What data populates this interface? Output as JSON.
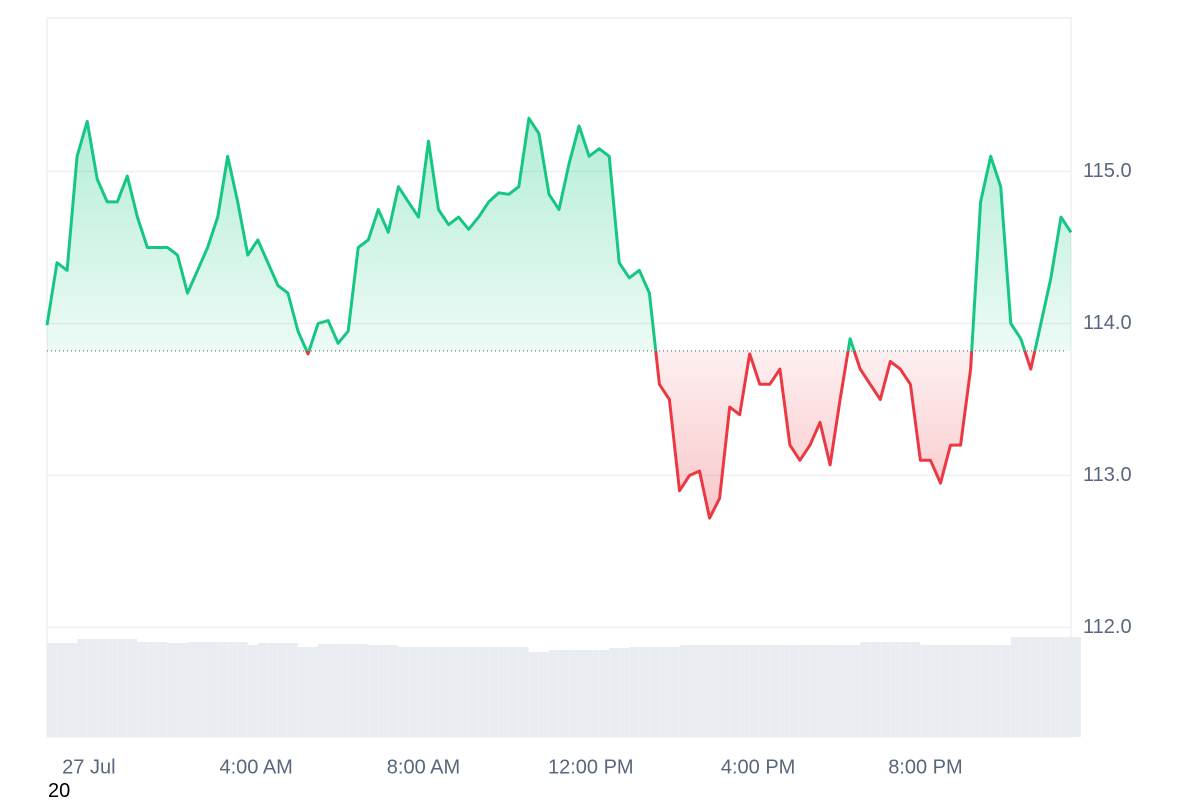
{
  "chart_data": {
    "type": "line",
    "x": [
      -1,
      -0.76,
      -0.52,
      -0.28,
      -0.04,
      0.2,
      0.44,
      0.68,
      0.92,
      1.16,
      1.4,
      1.64,
      1.88,
      2.12,
      2.36,
      2.6,
      2.84,
      3.08,
      3.32,
      3.56,
      3.8,
      4.04,
      4.28,
      4.52,
      4.76,
      5,
      5.24,
      5.48,
      5.72,
      5.96,
      6.2,
      6.44,
      6.68,
      6.92,
      7.16,
      7.4,
      7.64,
      7.88,
      8.12,
      8.36,
      8.6,
      8.84,
      9.08,
      9.32,
      9.56,
      9.8,
      10.04,
      10.28,
      10.52,
      10.76,
      11,
      11.24,
      11.48,
      11.72,
      11.96,
      12.2,
      12.44,
      12.68,
      12.92,
      13.16,
      13.4,
      13.64,
      13.88,
      14.12,
      14.36,
      14.6,
      14.84,
      15.08,
      15.32,
      15.56,
      15.8,
      16.04,
      16.28,
      16.52,
      16.76,
      17,
      17.24,
      17.48,
      17.72,
      17.96,
      18.2,
      18.44,
      18.68,
      18.92,
      19.16,
      19.4,
      19.64,
      19.88,
      20.12,
      20.36,
      20.6,
      20.84,
      21.08,
      21.32,
      21.56,
      21.8,
      22.04,
      22.28,
      22.52,
      22.76,
      23,
      23.24,
      23.48
    ],
    "series": [
      {
        "values": [
          113.99,
          114.4,
          114.35,
          115.1,
          115.33,
          114.95,
          114.8,
          114.8,
          114.97,
          114.7,
          114.5,
          114.5,
          114.5,
          114.45,
          114.2,
          114.35,
          114.5,
          114.7,
          115.1,
          114.8,
          114.45,
          114.55,
          114.4,
          114.25,
          114.2,
          113.95,
          113.8,
          114.0,
          114.02,
          113.87,
          113.95,
          114.5,
          114.55,
          114.75,
          114.6,
          114.9,
          114.8,
          114.7,
          115.2,
          114.75,
          114.65,
          114.7,
          114.62,
          114.7,
          114.8,
          114.86,
          114.85,
          114.9,
          115.35,
          115.25,
          114.85,
          114.75,
          115.05,
          115.3,
          115.1,
          115.15,
          115.1,
          114.4,
          114.3,
          114.35,
          114.2,
          113.6,
          113.5,
          112.9,
          113.0,
          113.03,
          112.72,
          112.85,
          113.45,
          113.4,
          113.8,
          113.6,
          113.6,
          113.7,
          113.2,
          113.1,
          113.2,
          113.35,
          113.07,
          113.5,
          113.9,
          113.7,
          113.6,
          113.5,
          113.75,
          113.7,
          113.6,
          113.1,
          113.1,
          112.95,
          113.2,
          113.2,
          113.7,
          114.8,
          115.1,
          114.9,
          114.0,
          113.9,
          113.7,
          114.0,
          114.3,
          114.7,
          114.6
        ],
        "color": "#16c784",
        "color_below": "#ea3943"
      },
      {
        "axis": "y2",
        "color": "#e9edf1",
        "values": [
          94,
          94,
          94,
          98,
          98,
          98,
          98,
          98,
          98,
          95,
          95,
          95,
          94,
          94,
          95,
          95,
          95,
          95,
          95,
          95,
          92,
          94,
          94,
          94,
          94,
          90,
          90,
          93,
          93,
          93,
          93,
          93,
          92,
          92,
          92,
          90,
          90,
          90,
          90,
          90,
          90,
          90,
          90,
          90,
          90,
          90,
          90,
          90,
          85,
          85,
          87,
          87,
          87,
          87,
          87,
          87,
          89,
          89,
          90,
          90,
          90,
          90,
          90,
          92,
          92,
          92,
          92,
          92,
          92,
          92,
          92,
          92,
          92,
          92,
          92,
          92,
          92,
          92,
          92,
          92,
          92,
          95,
          95,
          95,
          95,
          95,
          95,
          92,
          92,
          92,
          92,
          92,
          92,
          92,
          92,
          92,
          100,
          100,
          100,
          100,
          100,
          100,
          100
        ]
      }
    ],
    "baseline": 113.82,
    "xlim": [
      -1,
      23.48
    ],
    "xticks": [
      {
        "value": 0,
        "label": "27 Jul"
      },
      {
        "value": 4,
        "label": "4:00 AM"
      },
      {
        "value": 8,
        "label": "8:00 AM"
      },
      {
        "value": 12,
        "label": "12:00 PM"
      },
      {
        "value": 16,
        "label": "4:00 PM"
      },
      {
        "value": 20,
        "label": "8:00 PM"
      }
    ],
    "ylim": [
      111.28,
      116.01
    ],
    "yticks": [
      {
        "value": 112,
        "label": "112.0"
      },
      {
        "value": 113,
        "label": "113.0"
      },
      {
        "value": 114,
        "label": "114.0"
      },
      {
        "value": 115,
        "label": "115.0"
      }
    ],
    "y2lim": [
      0,
      100
    ],
    "grid": true,
    "footer": "20"
  }
}
